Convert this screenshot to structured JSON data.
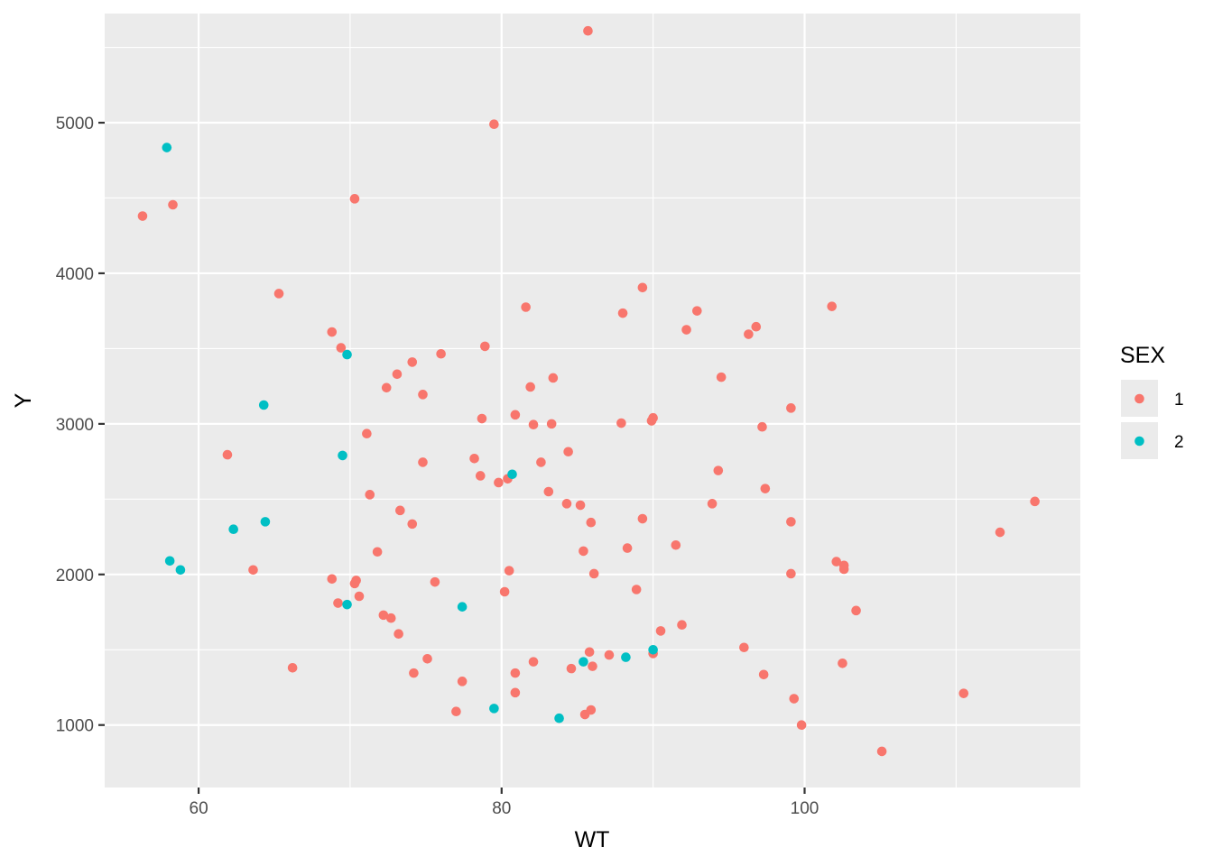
{
  "chart_data": {
    "type": "scatter",
    "xlabel": "WT",
    "ylabel": "Y",
    "xlim": [
      53.8,
      118.2
    ],
    "ylim": [
      585,
      5725
    ],
    "x_ticks": [
      60,
      80,
      100
    ],
    "y_ticks": [
      1000,
      2000,
      3000,
      4000,
      5000
    ],
    "grid": true,
    "legend": {
      "title": "SEX",
      "position": "right"
    },
    "colors": {
      "1": "#F8766D",
      "2": "#00BFC4",
      "panel": "#EBEBEB",
      "grid": "#FFFFFF"
    },
    "series": [
      {
        "name": "1",
        "points": [
          [
            56.3,
            4380
          ],
          [
            58.3,
            4455
          ],
          [
            61.9,
            2795
          ],
          [
            63.6,
            2030
          ],
          [
            65.3,
            3865
          ],
          [
            66.2,
            1380
          ],
          [
            68.8,
            3610
          ],
          [
            68.8,
            1970
          ],
          [
            69.2,
            1810
          ],
          [
            69.4,
            3505
          ],
          [
            70.3,
            4495
          ],
          [
            70.3,
            1940
          ],
          [
            70.4,
            1960
          ],
          [
            70.6,
            1855
          ],
          [
            71.1,
            2935
          ],
          [
            71.3,
            2530
          ],
          [
            71.8,
            2150
          ],
          [
            72.2,
            1730
          ],
          [
            72.4,
            3240
          ],
          [
            72.7,
            1710
          ],
          [
            73.1,
            3330
          ],
          [
            73.2,
            1605
          ],
          [
            73.3,
            2425
          ],
          [
            74.1,
            3410
          ],
          [
            74.1,
            2335
          ],
          [
            74.2,
            1345
          ],
          [
            74.8,
            3195
          ],
          [
            74.8,
            2745
          ],
          [
            75.1,
            1440
          ],
          [
            75.6,
            1950
          ],
          [
            76.0,
            3465
          ],
          [
            77.0,
            1090
          ],
          [
            77.4,
            1290
          ],
          [
            78.2,
            2770
          ],
          [
            78.6,
            2655
          ],
          [
            78.7,
            3035
          ],
          [
            78.9,
            3515
          ],
          [
            79.5,
            4990
          ],
          [
            79.8,
            2610
          ],
          [
            80.2,
            1885
          ],
          [
            80.4,
            2635
          ],
          [
            80.5,
            2025
          ],
          [
            80.9,
            3060
          ],
          [
            80.9,
            1215
          ],
          [
            80.9,
            1345
          ],
          [
            81.6,
            3775
          ],
          [
            81.9,
            3245
          ],
          [
            82.1,
            2995
          ],
          [
            82.1,
            1420
          ],
          [
            82.6,
            2745
          ],
          [
            83.1,
            2550
          ],
          [
            83.3,
            3000
          ],
          [
            83.4,
            3305
          ],
          [
            84.3,
            2470
          ],
          [
            84.4,
            2815
          ],
          [
            84.6,
            1375
          ],
          [
            85.2,
            2460
          ],
          [
            85.4,
            2155
          ],
          [
            85.5,
            1070
          ],
          [
            85.7,
            5610
          ],
          [
            85.8,
            1485
          ],
          [
            85.9,
            2345
          ],
          [
            86.0,
            1390
          ],
          [
            86.1,
            2005
          ],
          [
            85.9,
            1100
          ],
          [
            87.1,
            1465
          ],
          [
            87.9,
            3005
          ],
          [
            88.0,
            3735
          ],
          [
            88.3,
            2175
          ],
          [
            88.9,
            1900
          ],
          [
            89.3,
            3905
          ],
          [
            89.3,
            2370
          ],
          [
            89.9,
            3020
          ],
          [
            90.0,
            3040
          ],
          [
            90.0,
            1475
          ],
          [
            90.5,
            1625
          ],
          [
            91.5,
            2195
          ],
          [
            91.9,
            1665
          ],
          [
            92.2,
            3625
          ],
          [
            92.9,
            3750
          ],
          [
            93.9,
            2470
          ],
          [
            94.3,
            2690
          ],
          [
            94.5,
            3310
          ],
          [
            96.0,
            1515
          ],
          [
            96.3,
            3595
          ],
          [
            96.8,
            3645
          ],
          [
            97.2,
            2980
          ],
          [
            97.3,
            1335
          ],
          [
            97.4,
            2570
          ],
          [
            99.1,
            3105
          ],
          [
            99.1,
            2350
          ],
          [
            99.1,
            2005
          ],
          [
            99.3,
            1175
          ],
          [
            99.8,
            1000
          ],
          [
            101.8,
            3780
          ],
          [
            102.1,
            2085
          ],
          [
            102.5,
            1410
          ],
          [
            102.6,
            2060
          ],
          [
            102.6,
            2035
          ],
          [
            103.4,
            1760
          ],
          [
            105.1,
            825
          ],
          [
            110.5,
            1210
          ],
          [
            112.9,
            2280
          ],
          [
            115.2,
            2485
          ]
        ]
      },
      {
        "name": "2",
        "points": [
          [
            57.9,
            4835
          ],
          [
            58.1,
            2090
          ],
          [
            58.8,
            2030
          ],
          [
            62.3,
            2300
          ],
          [
            64.3,
            3125
          ],
          [
            64.4,
            2350
          ],
          [
            69.5,
            2790
          ],
          [
            69.8,
            3460
          ],
          [
            69.8,
            1800
          ],
          [
            77.4,
            1785
          ],
          [
            79.5,
            1110
          ],
          [
            80.7,
            2665
          ],
          [
            83.8,
            1045
          ],
          [
            85.4,
            1420
          ],
          [
            88.2,
            1450
          ],
          [
            90.0,
            1500
          ]
        ]
      }
    ]
  }
}
